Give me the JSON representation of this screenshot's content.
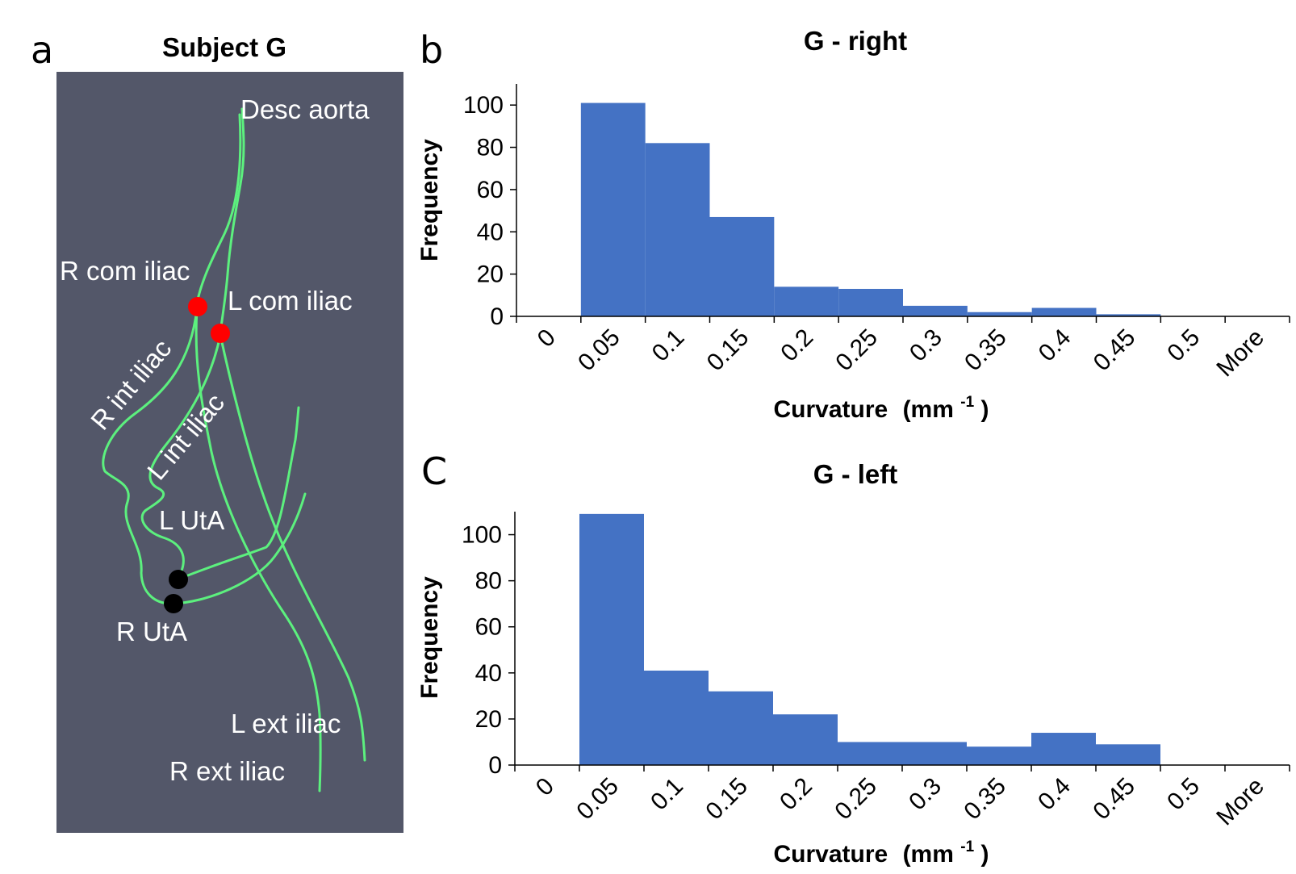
{
  "panel_a": {
    "letter": "a",
    "title": "Subject G",
    "colors": {
      "background": "#535769",
      "vessel": "#5cf07e",
      "marker_red": "#ff0000",
      "marker_black": "#000000",
      "label": "#ffffff"
    },
    "labels": {
      "desc_aorta": "Desc aorta",
      "r_com_iliac": "R com iliac",
      "l_com_iliac": "L com iliac",
      "r_int_iliac": "R int iliac",
      "l_int_iliac": "L int iliac",
      "l_uta": "L UtA",
      "r_uta": "R UtA",
      "l_ext_iliac": "L ext iliac",
      "r_ext_iliac": "R ext iliac"
    }
  },
  "panel_b": {
    "letter": "b"
  },
  "panel_c": {
    "letter": "C"
  },
  "chart_data": [
    {
      "type": "bar",
      "title": "G - right",
      "xlabel": "Curvature",
      "xlabel_unit_base": "(mm",
      "xlabel_unit_exp": "-1",
      "xlabel_unit_close": ")",
      "ylabel": "Frequency",
      "categories": [
        "0",
        "0.05",
        "0.1",
        "0.15",
        "0.2",
        "0.25",
        "0.3",
        "0.35",
        "0.4",
        "0.45",
        "0.5",
        "More"
      ],
      "values": [
        0,
        101,
        82,
        47,
        14,
        13,
        5,
        2,
        4,
        1,
        0,
        0
      ],
      "yticks": [
        0,
        20,
        40,
        60,
        80,
        100
      ],
      "ylim": [
        0,
        110
      ],
      "color": "#4472c4"
    },
    {
      "type": "bar",
      "title": "G - left",
      "xlabel": "Curvature",
      "xlabel_unit_base": "(mm",
      "xlabel_unit_exp": "-1",
      "xlabel_unit_close": ")",
      "ylabel": "Frequency",
      "categories": [
        "0",
        "0.05",
        "0.1",
        "0.15",
        "0.2",
        "0.25",
        "0.3",
        "0.35",
        "0.4",
        "0.45",
        "0.5",
        "More"
      ],
      "values": [
        0,
        109,
        41,
        32,
        22,
        10,
        10,
        8,
        14,
        9,
        0,
        0
      ],
      "yticks": [
        0,
        20,
        40,
        60,
        80,
        100
      ],
      "ylim": [
        0,
        110
      ],
      "color": "#4472c4"
    }
  ]
}
